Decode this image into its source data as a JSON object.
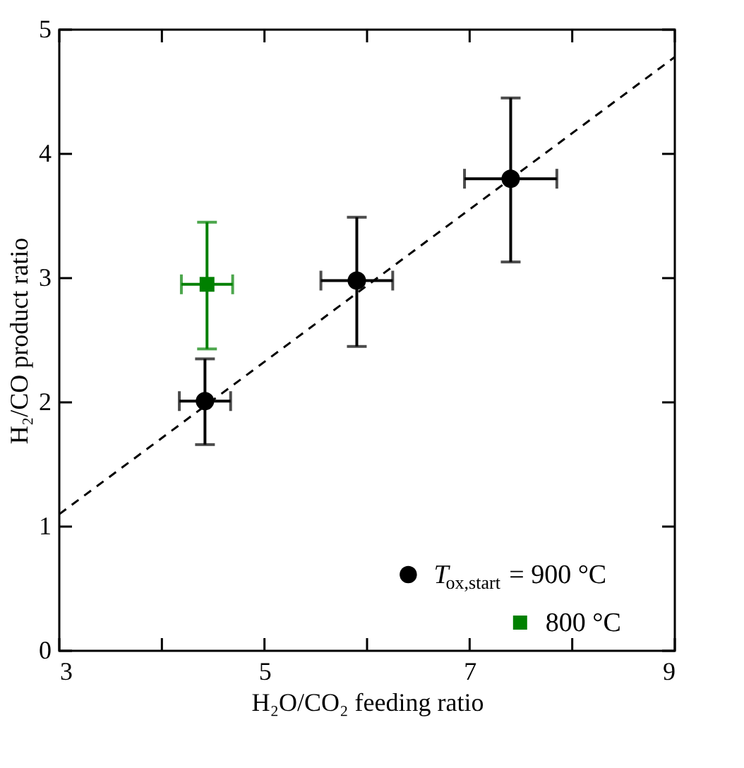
{
  "chart_data": {
    "type": "scatter",
    "xlabel": "H₂O/CO₂ feeding ratio",
    "ylabel": "H₂/CO product ratio",
    "xlim": [
      3,
      9
    ],
    "xticks": [
      3,
      {
        "value": 4,
        "label": null
      },
      5,
      {
        "value": 6,
        "label": null
      },
      7,
      {
        "value": 8,
        "label": null
      },
      9
    ],
    "ylim": [
      0,
      5
    ],
    "yticks": [
      0,
      1,
      2,
      3,
      4,
      5
    ],
    "grid": false,
    "legend": "bottom right",
    "series": [
      {
        "name": "T$_{ox,start}$ = 900 °C",
        "marker": "circle",
        "color": "#000000",
        "x": [
          4.42,
          5.9,
          7.4
        ],
        "values": [
          2.01,
          2.98,
          3.8
        ],
        "errors": [
          [
            1.66,
            2.35
          ],
          [
            2.45,
            3.49
          ],
          [
            3.13,
            4.45
          ]
        ],
        "xerrors": [
          0.25,
          0.35,
          0.45
        ]
      },
      {
        "name": "800 °C",
        "marker": "square",
        "color": "#008000",
        "x": [
          4.44
        ],
        "values": [
          2.95
        ],
        "errors": [
          [
            2.43,
            3.45
          ]
        ],
        "xerrors": [
          0.25
        ]
      },
      {
        "type": "line",
        "line_style": "dashed",
        "color": "#000000",
        "x": [
          3,
          9
        ],
        "values": [
          1.1,
          4.78
        ]
      }
    ]
  }
}
